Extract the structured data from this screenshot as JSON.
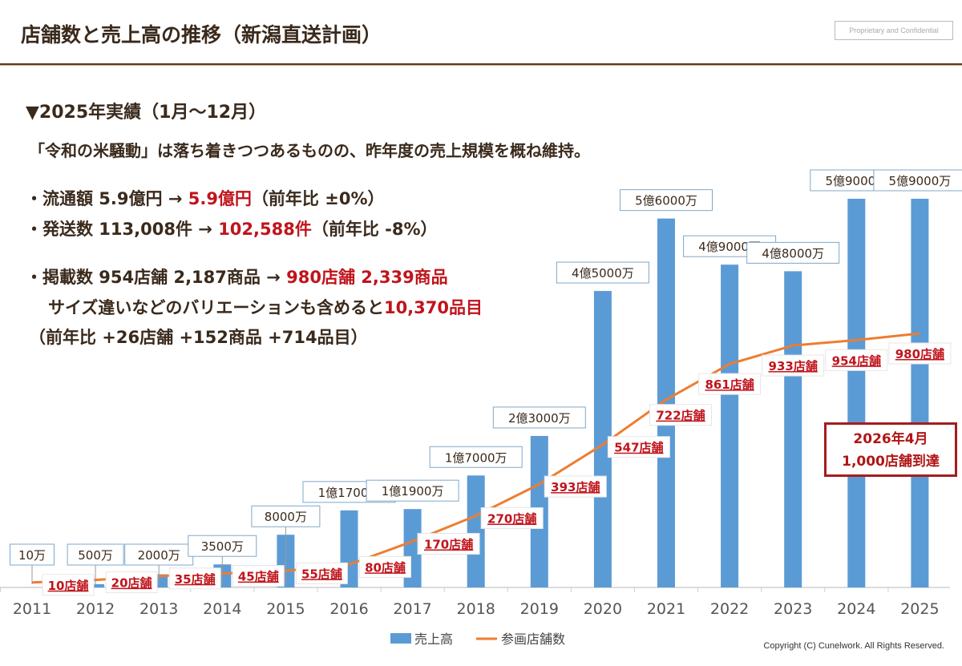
{
  "header": {
    "title": "店舗数と売上高の推移（新潟直送計画）",
    "confidential": "Proprietary and Confidential"
  },
  "summary": {
    "heading": "▼2025年実績（1月〜12月）",
    "lead": "「令和の米騒動」は落ち着きつつあるものの、昨年度の売上規模を概ね維持。",
    "b1_a": "・流通額 5.9億円 → ",
    "b1_b": "5.9億円",
    "b1_c": "（前年比 ±0%）",
    "b2_a": "・発送数 113,008件 → ",
    "b2_b": "102,588件",
    "b2_c": "（前年比 -8%）",
    "b3_a": "・掲載数 954店舗 2,187商品 → ",
    "b3_b": "980店舗 2,339商品",
    "b4_a": "サイズ違いなどのバリエーションも含めると",
    "b4_b": "10,370品目",
    "b5": "（前年比 +26店舗 +152商品 +714品目）"
  },
  "callout": {
    "line1": "2026年4月",
    "line2": "1,000店舗到達"
  },
  "colors": {
    "bar": "#5b9bd5",
    "line": "#ed7d31",
    "accent": "#c0141c"
  },
  "chart_data": {
    "type": "bar+line",
    "categories": [
      "2011",
      "2012",
      "2013",
      "2014",
      "2015",
      "2016",
      "2017",
      "2018",
      "2019",
      "2020",
      "2021",
      "2022",
      "2023",
      "2024",
      "2025"
    ],
    "series": [
      {
        "name": "売上高",
        "type": "bar",
        "unit": "万円",
        "values": [
          10,
          500,
          2000,
          3500,
          8000,
          11700,
          11900,
          17000,
          23000,
          45000,
          56000,
          49000,
          48000,
          59000,
          59000
        ],
        "labels": [
          "10万",
          "500万",
          "2000万",
          "3500万",
          "8000万",
          "1億1700万",
          "1億1900万",
          "1億7000万",
          "2億3000万",
          "4億5000万",
          "5億6000万",
          "4億9000万",
          "4億8000万",
          "5億9000万",
          "5億9000万"
        ]
      },
      {
        "name": "参画店舗数",
        "type": "line",
        "values": [
          10,
          20,
          35,
          45,
          55,
          80,
          170,
          270,
          393,
          547,
          722,
          861,
          933,
          954,
          980
        ],
        "labels": [
          "10店舗",
          "20店舗",
          "35店舗",
          "45店舗",
          "55店舗",
          "80店舗",
          "170店舗",
          "270店舗",
          "393店舗",
          "547店舗",
          "722店舗",
          "861店舗",
          "933店舗",
          "954店舗",
          "980店舗"
        ]
      }
    ],
    "legend": "bottom",
    "grid": false
  },
  "footer": {
    "copyright": "Copyright (C) Cunelwork. All Rights Reserved."
  }
}
